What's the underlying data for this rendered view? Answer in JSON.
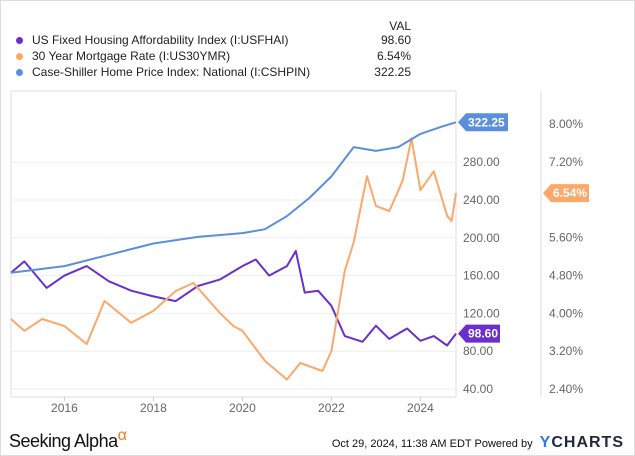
{
  "header": {
    "val_label": "VAL"
  },
  "legend": [
    {
      "name": "US Fixed Housing Affordability Index (I:USFHAI)",
      "value": "98.60",
      "color": "#6a2fcc"
    },
    {
      "name": "30 Year Mortgage Rate (I:US30YMR)",
      "value": "6.54%",
      "color": "#fca86a"
    },
    {
      "name": "Case-Shiller Home Price Index: National (I:CSHPIN)",
      "value": "322.25",
      "color": "#5b8fdc"
    }
  ],
  "chart_data": {
    "type": "line",
    "x_ticks": [
      "2016",
      "2018",
      "2020",
      "2022",
      "2024"
    ],
    "xlim": [
      2014.8,
      2024.8
    ],
    "left_axis": {
      "ticks": [
        "40.00",
        "80.00",
        "120.00",
        "160.00",
        "200.00",
        "240.00",
        "280.00"
      ],
      "ylim": [
        40,
        322
      ]
    },
    "right_axis": {
      "ticks": [
        "2.40%",
        "3.20%",
        "4.00%",
        "4.80%",
        "5.60%",
        "6.40%",
        "7.20%",
        "8.00%"
      ],
      "ylim": [
        2.4,
        8.1
      ]
    },
    "series": [
      {
        "name": "US Fixed Housing Affordability Index (I:USFHAI)",
        "axis": "left",
        "color": "#6a2fcc",
        "last_label": "98.60",
        "x": [
          2014.8,
          2015.1,
          2015.6,
          2016,
          2016.5,
          2017,
          2017.5,
          2018,
          2018.5,
          2019,
          2019.5,
          2020,
          2020.3,
          2020.6,
          2021,
          2021.2,
          2021.4,
          2021.7,
          2022,
          2022.3,
          2022.7,
          2023,
          2023.3,
          2023.7,
          2024,
          2024.3,
          2024.6,
          2024.8
        ],
        "y": [
          163,
          175,
          147,
          160,
          170,
          154,
          144,
          138,
          133,
          149,
          156,
          170,
          177,
          160,
          170,
          186,
          142,
          144,
          128,
          96,
          90,
          107,
          93,
          104,
          91,
          96,
          86,
          98.6
        ]
      },
      {
        "name": "30 Year Mortgage Rate (I:US30YMR)",
        "axis": "right",
        "color": "#fca86a",
        "last_label": "6.54%",
        "x": [
          2014.8,
          2015.1,
          2015.5,
          2016,
          2016.5,
          2016.9,
          2017.5,
          2018,
          2018.5,
          2018.9,
          2019.5,
          2019.8,
          2020,
          2020.5,
          2021,
          2021.3,
          2021.8,
          2022,
          2022.3,
          2022.5,
          2022.8,
          2023,
          2023.3,
          2023.6,
          2023.8,
          2024,
          2024.3,
          2024.6,
          2024.7,
          2024.8
        ],
        "y": [
          3.88,
          3.63,
          3.88,
          3.73,
          3.35,
          4.26,
          3.8,
          4.05,
          4.47,
          4.64,
          4.0,
          3.73,
          3.63,
          3.0,
          2.6,
          2.95,
          2.78,
          3.2,
          4.9,
          5.5,
          6.9,
          6.27,
          6.16,
          6.8,
          7.7,
          6.6,
          7.0,
          6.06,
          5.95,
          6.54
        ]
      },
      {
        "name": "Case-Shiller Home Price Index: National (I:CSHPIN)",
        "axis": "left",
        "color": "#5b8fdc",
        "last_label": "322.25",
        "x": [
          2014.8,
          2016,
          2017,
          2018,
          2019,
          2020,
          2020.5,
          2021,
          2021.5,
          2022,
          2022.5,
          2023,
          2023.5,
          2024,
          2024.5,
          2024.8
        ],
        "y": [
          163,
          170,
          182,
          194,
          201,
          205,
          209,
          223,
          242,
          265,
          296,
          292,
          296,
          310,
          318,
          322.25
        ]
      }
    ]
  },
  "footer": {
    "brand": "Seeking Alpha",
    "alpha": "α",
    "timestamp": "Oct 29, 2024, 11:38 AM EDT",
    "powered": "Powered by",
    "ycharts_y": "Y",
    "ycharts_rest": "CHARTS"
  }
}
